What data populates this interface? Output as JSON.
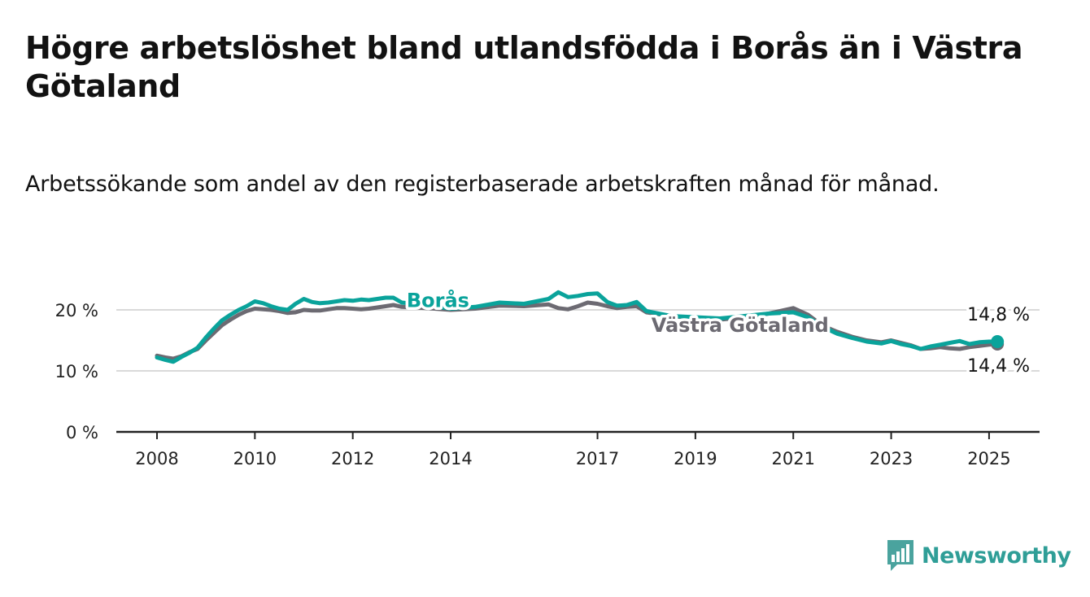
{
  "title": "Högre arbetslöshet bland utlandsfödda i Borås än i Västra Götaland",
  "subtitle": "Arbetssökande som andel av den registerbaserade arbetskraften månad för månad.",
  "logo_text": "Newsworthy",
  "colors": {
    "boras": "#0aa39b",
    "vastra_gotaland": "#6c6a72",
    "grid": "#d9d9d9",
    "axis": "#222222",
    "logo": "#2f9e97"
  },
  "chart_data": {
    "type": "line",
    "x_label": "",
    "y_label": "",
    "xlim": [
      2008.0,
      2025.5
    ],
    "ylim": [
      0,
      25
    ],
    "y_ticks": [
      0,
      10,
      20
    ],
    "y_tick_labels": [
      "0 %",
      "10 %",
      "20 %"
    ],
    "x_ticks": [
      2008,
      2010,
      2012,
      2014,
      2017,
      2019,
      2021,
      2023,
      2025
    ],
    "x_tick_labels": [
      "2008",
      "2010",
      "2012",
      "2014",
      "2017",
      "2019",
      "2021",
      "2023",
      "2025"
    ],
    "grid": "horizontal",
    "series": [
      {
        "name": "Borås",
        "color": "#0aa39b",
        "end_label": "14,8 %",
        "x": [
          2008.0,
          2008.17,
          2008.33,
          2008.5,
          2008.67,
          2008.83,
          2009.0,
          2009.17,
          2009.33,
          2009.5,
          2009.67,
          2009.83,
          2010.0,
          2010.17,
          2010.33,
          2010.5,
          2010.67,
          2010.83,
          2011.0,
          2011.17,
          2011.33,
          2011.5,
          2011.67,
          2011.83,
          2012.0,
          2012.17,
          2012.33,
          2012.5,
          2012.67,
          2012.83,
          2013.0,
          2013.5,
          2014.0,
          2014.5,
          2015.0,
          2015.5,
          2016.0,
          2016.2,
          2016.4,
          2016.6,
          2016.8,
          2017.0,
          2017.2,
          2017.4,
          2017.6,
          2017.8,
          2018.0,
          2018.5,
          2019.0,
          2019.5,
          2020.0,
          2020.5,
          2021.0,
          2021.3,
          2021.6,
          2021.9,
          2022.2,
          2022.5,
          2022.8,
          2023.0,
          2023.2,
          2023.4,
          2023.6,
          2023.8,
          2024.0,
          2024.2,
          2024.4,
          2024.6,
          2024.8,
          2025.0,
          2025.17
        ],
        "y": [
          12.2,
          11.8,
          11.5,
          12.3,
          13.0,
          13.8,
          15.5,
          17.0,
          18.3,
          19.2,
          20.0,
          20.6,
          21.4,
          21.1,
          20.6,
          20.2,
          20.0,
          21.0,
          21.8,
          21.3,
          21.1,
          21.2,
          21.4,
          21.6,
          21.5,
          21.7,
          21.6,
          21.8,
          22.0,
          22.0,
          21.2,
          20.8,
          20.2,
          20.5,
          21.2,
          21.0,
          21.8,
          22.9,
          22.1,
          22.3,
          22.6,
          22.7,
          21.3,
          20.7,
          20.8,
          21.3,
          19.8,
          19.0,
          18.8,
          18.6,
          19.0,
          19.4,
          19.6,
          18.8,
          17.2,
          16.1,
          15.4,
          14.8,
          14.5,
          14.9,
          14.4,
          14.1,
          13.6,
          14.0,
          14.3,
          14.6,
          14.9,
          14.4,
          14.7,
          14.8,
          14.8
        ]
      },
      {
        "name": "Västra Götaland",
        "color": "#6c6a72",
        "end_label": "14,4 %",
        "x": [
          2008.0,
          2008.17,
          2008.33,
          2008.5,
          2008.67,
          2008.83,
          2009.0,
          2009.17,
          2009.33,
          2009.5,
          2009.67,
          2009.83,
          2010.0,
          2010.17,
          2010.33,
          2010.5,
          2010.67,
          2010.83,
          2011.0,
          2011.17,
          2011.33,
          2011.5,
          2011.67,
          2011.83,
          2012.0,
          2012.17,
          2012.33,
          2012.5,
          2012.67,
          2012.83,
          2013.0,
          2013.5,
          2014.0,
          2014.5,
          2015.0,
          2015.5,
          2016.0,
          2016.2,
          2016.4,
          2016.6,
          2016.8,
          2017.0,
          2017.2,
          2017.4,
          2017.6,
          2017.8,
          2018.0,
          2018.5,
          2019.0,
          2019.5,
          2020.0,
          2020.5,
          2021.0,
          2021.3,
          2021.6,
          2021.9,
          2022.2,
          2022.5,
          2022.8,
          2023.0,
          2023.2,
          2023.4,
          2023.6,
          2023.8,
          2024.0,
          2024.2,
          2024.4,
          2024.6,
          2024.8,
          2025.0,
          2025.17
        ],
        "y": [
          12.5,
          12.2,
          12.0,
          12.4,
          13.1,
          13.6,
          15.0,
          16.3,
          17.5,
          18.4,
          19.2,
          19.8,
          20.2,
          20.1,
          20.0,
          19.8,
          19.5,
          19.6,
          20.0,
          19.9,
          19.9,
          20.1,
          20.3,
          20.3,
          20.2,
          20.1,
          20.2,
          20.4,
          20.6,
          20.8,
          20.5,
          20.3,
          20.0,
          20.2,
          20.7,
          20.6,
          20.9,
          20.3,
          20.1,
          20.6,
          21.2,
          21.0,
          20.6,
          20.3,
          20.5,
          20.6,
          19.6,
          19.0,
          18.6,
          18.4,
          18.8,
          19.4,
          20.3,
          19.2,
          17.4,
          16.4,
          15.6,
          15.0,
          14.7,
          15.0,
          14.6,
          14.2,
          13.6,
          13.7,
          13.9,
          13.7,
          13.6,
          13.9,
          14.1,
          14.3,
          14.4
        ]
      }
    ],
    "series_labels": [
      "Borås",
      "Västra Götaland"
    ]
  }
}
